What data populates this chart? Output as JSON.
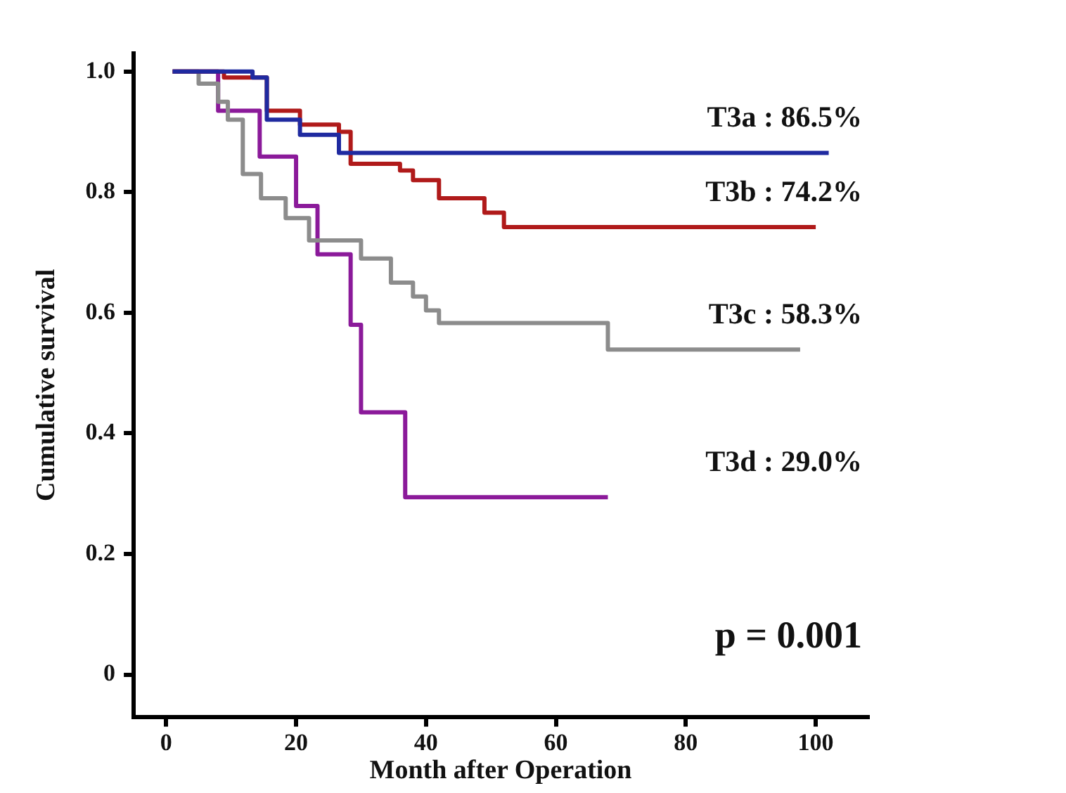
{
  "chart_data": {
    "type": "step",
    "xlabel": "Month after Operation",
    "ylabel": "Cumulative survival",
    "xlim": [
      -5,
      108
    ],
    "xticks": [
      0,
      20,
      40,
      60,
      80,
      100
    ],
    "ylim": [
      -0.07,
      1.03
    ],
    "yticks": [
      0,
      {
        "value": 0.2,
        "label": "0.2"
      },
      {
        "value": 0.4,
        "label": "0.4"
      },
      {
        "value": 0.6,
        "label": "0.6"
      },
      {
        "value": 0.8,
        "label": "0.8"
      },
      {
        "value": 1,
        "label": "1.0"
      }
    ],
    "grid": false,
    "legend": false,
    "marker": "none",
    "line_style": "solid",
    "series": [
      {
        "color": "#1f2aa0",
        "x": [
          1,
          13.3,
          15.5,
          20.6,
          26.6,
          102
        ],
        "values": [
          1,
          0.99,
          0.92,
          0.895,
          0.865,
          0.865
        ]
      },
      {
        "color": "#b01a1a",
        "x": [
          1,
          8.9,
          15.5,
          20.6,
          26.6,
          28.4,
          36,
          38,
          42,
          49,
          52,
          100
        ],
        "values": [
          1,
          0.99,
          0.935,
          0.912,
          0.9,
          0.847,
          0.836,
          0.82,
          0.79,
          0.766,
          0.742,
          0.742
        ]
      },
      {
        "color": "#8c8c8c",
        "x": [
          1,
          5,
          8,
          9.5,
          11.8,
          14.6,
          18.4,
          22,
          29,
          30,
          34.6,
          38,
          40,
          42,
          68,
          97.6
        ],
        "values": [
          1,
          0.98,
          0.95,
          0.92,
          0.83,
          0.79,
          0.757,
          0.72,
          0.72,
          0.69,
          0.65,
          0.627,
          0.604,
          0.583,
          0.539,
          0.539
        ]
      },
      {
        "color": "#8b1a9a",
        "x": [
          1,
          8,
          14.4,
          20,
          23.3,
          28.4,
          30,
          36.8,
          68
        ],
        "values": [
          1,
          0.935,
          0.859,
          0.777,
          0.697,
          0.58,
          0.435,
          0.294,
          0.294
        ]
      }
    ],
    "annotations": [
      "T3a : 86.5%",
      "T3b : 74.2%",
      "T3c : 58.3%",
      "T3d : 29.0%",
      "p = 0.001"
    ]
  }
}
